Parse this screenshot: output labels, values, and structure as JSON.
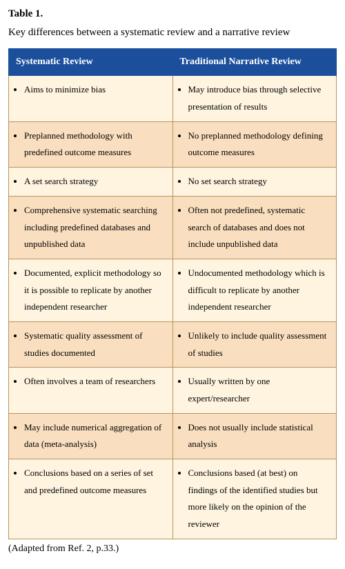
{
  "table_number": "Table 1.",
  "caption": "Key differences between a systematic review and a narrative review",
  "columns": [
    "Systematic    Review",
    "Traditional Narrative Review"
  ],
  "rows": [
    {
      "shade": "light",
      "left": "Aims to minimize bias",
      "right": "May introduce bias through selective presentation of results"
    },
    {
      "shade": "dark",
      "left": "Preplanned methodology with predefined outcome measures",
      "right": "No preplanned methodology defining outcome measures"
    },
    {
      "shade": "light",
      "left": "A set search strategy",
      "right": "No set search strategy"
    },
    {
      "shade": "dark",
      "left": "Comprehensive systematic searching including predefined databases and unpublished data",
      "right": "Often not predefined, systematic search of databases and does not include unpublished data"
    },
    {
      "shade": "light",
      "left": "Documented, explicit methodology so it is possible to replicate by another independent researcher",
      "right": "Undocumented methodology which is difficult to replicate by another independent researcher"
    },
    {
      "shade": "dark",
      "left": "Systematic quality assessment of studies documented",
      "right": "Unlikely to include quality assessment of studies"
    },
    {
      "shade": "light",
      "left": "Often involves a team of researchers",
      "right": "Usually written by one expert/researcher"
    },
    {
      "shade": "dark",
      "left": "May include numerical aggregation of data (meta-analysis)",
      "right": "Does not usually include statistical analysis"
    },
    {
      "shade": "light",
      "left": "Conclusions based on a series of set and predefined outcome measures",
      "right": "Conclusions based (at best) on findings of the identified studies but more likely on the opinion of the reviewer"
    }
  ],
  "footnote": "(Adapted from Ref. 2, p.33.)"
}
